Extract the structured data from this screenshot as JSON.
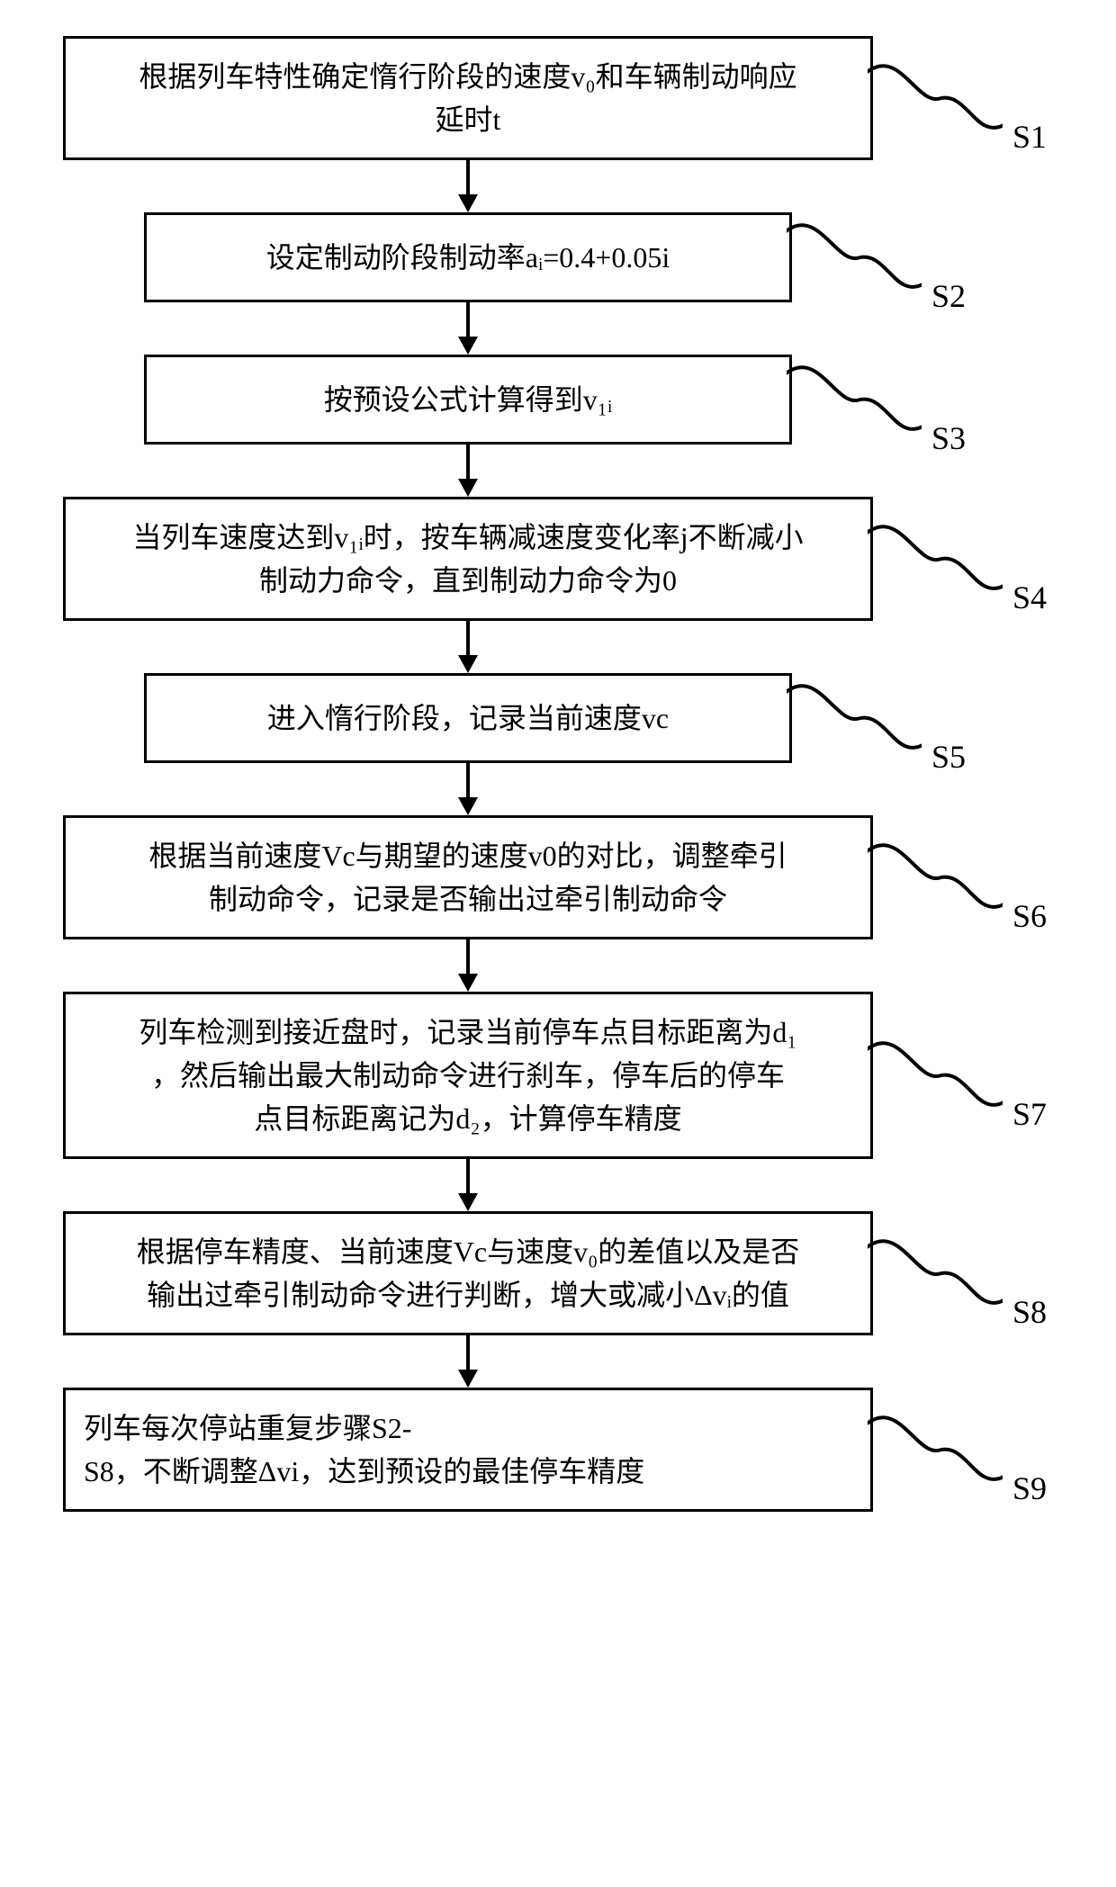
{
  "flowchart": {
    "type": "flowchart",
    "background_color": "#ffffff",
    "border_color": "#000000",
    "border_width": 3,
    "text_color": "#000000",
    "font_family": "SimSun",
    "font_size": 32,
    "label_font_size": 36,
    "arrow_color": "#000000",
    "box_wide_width": 900,
    "box_narrow_width": 720,
    "connector_stroke": "#000000",
    "connector_stroke_width": 4,
    "steps": [
      {
        "id": "S1",
        "label": "S1",
        "width": "wide",
        "lines": [
          "根据列车特性确定惰行阶段的速度v₀和车辆制动响应",
          "延时t"
        ]
      },
      {
        "id": "S2",
        "label": "S2",
        "width": "narrow",
        "lines": [
          "设定制动阶段制动率aᵢ=0.4+0.05i"
        ]
      },
      {
        "id": "S3",
        "label": "S3",
        "width": "narrow",
        "lines": [
          "按预设公式计算得到v₁ᵢ"
        ]
      },
      {
        "id": "S4",
        "label": "S4",
        "width": "wide",
        "lines": [
          "当列车速度达到v₁ᵢ时，按车辆减速度变化率j不断减小",
          "制动力命令，直到制动力命令为0"
        ]
      },
      {
        "id": "S5",
        "label": "S5",
        "width": "narrow",
        "lines": [
          "进入惰行阶段，记录当前速度vc"
        ]
      },
      {
        "id": "S6",
        "label": "S6",
        "width": "wide",
        "lines": [
          "根据当前速度Vc与期望的速度v0的对比，调整牵引",
          "制动命令，记录是否输出过牵引制动命令"
        ]
      },
      {
        "id": "S7",
        "label": "S7",
        "width": "wide",
        "lines": [
          "列车检测到接近盘时，记录当前停车点目标距离为d₁",
          "，然后输出最大制动命令进行刹车，停车后的停车",
          "点目标距离记为d₂，计算停车精度"
        ]
      },
      {
        "id": "S8",
        "label": "S8",
        "width": "wide",
        "lines": [
          "根据停车精度、当前速度Vc与速度v₀的差值以及是否",
          "输出过牵引制动命令进行判断，增大或减小Δvᵢ的值"
        ]
      },
      {
        "id": "S9",
        "label": "S9",
        "width": "wide",
        "align": "left",
        "lines": [
          "列车每次停站重复步骤S2-",
          "S8，不断调整Δvi，达到预设的最佳停车精度"
        ]
      }
    ]
  }
}
